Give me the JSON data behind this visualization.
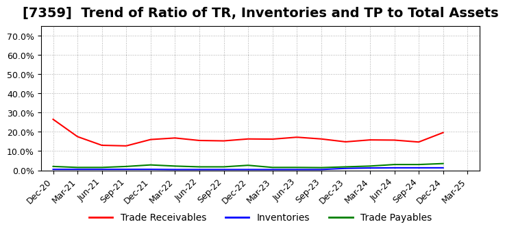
{
  "title": "[7359]  Trend of Ratio of TR, Inventories and TP to Total Assets",
  "x_labels": [
    "Dec-20",
    "Mar-21",
    "Jun-21",
    "Sep-21",
    "Dec-21",
    "Mar-22",
    "Jun-22",
    "Sep-22",
    "Dec-22",
    "Mar-23",
    "Jun-23",
    "Sep-23",
    "Dec-23",
    "Mar-24",
    "Jun-24",
    "Sep-24",
    "Dec-24",
    "Mar-25"
  ],
  "trade_receivables": [
    0.265,
    0.175,
    0.13,
    0.127,
    0.16,
    0.168,
    0.155,
    0.153,
    0.163,
    0.162,
    0.172,
    0.163,
    0.148,
    0.158,
    0.157,
    0.147,
    0.196,
    null
  ],
  "inventories": [
    0.005,
    0.005,
    0.005,
    0.005,
    0.005,
    0.004,
    0.004,
    0.004,
    0.004,
    0.004,
    0.004,
    0.004,
    0.01,
    0.012,
    0.013,
    0.013,
    0.013,
    null
  ],
  "trade_payables": [
    0.02,
    0.015,
    0.015,
    0.02,
    0.028,
    0.022,
    0.018,
    0.018,
    0.026,
    0.015,
    0.015,
    0.014,
    0.018,
    0.022,
    0.03,
    0.03,
    0.035,
    null
  ],
  "ylim": [
    0.0,
    0.75
  ],
  "yticks": [
    0.0,
    0.1,
    0.2,
    0.3,
    0.4,
    0.5,
    0.6,
    0.7
  ],
  "line_colors": {
    "trade_receivables": "#FF0000",
    "inventories": "#0000FF",
    "trade_payables": "#008000"
  },
  "legend_labels": [
    "Trade Receivables",
    "Inventories",
    "Trade Payables"
  ],
  "background_color": "#FFFFFF",
  "plot_bg_color": "#FFFFFF",
  "grid_color": "#AAAAAA",
  "title_fontsize": 14,
  "tick_fontsize": 9,
  "legend_fontsize": 10
}
